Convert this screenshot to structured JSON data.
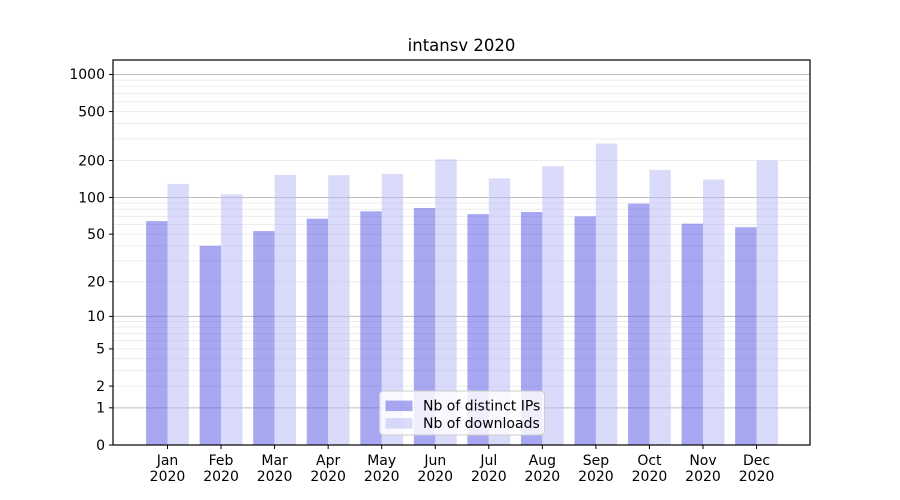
{
  "chart_data": {
    "type": "bar",
    "title": "intansv 2020",
    "categories": [
      "Jan 2020",
      "Feb 2020",
      "Mar 2020",
      "Apr 2020",
      "May 2020",
      "Jun 2020",
      "Jul 2020",
      "Aug 2020",
      "Sep 2020",
      "Oct 2020",
      "Nov 2020",
      "Dec 2020"
    ],
    "x_tick_months": [
      "Jan",
      "Feb",
      "Mar",
      "Apr",
      "May",
      "Jun",
      "Jul",
      "Aug",
      "Sep",
      "Oct",
      "Nov",
      "Dec"
    ],
    "x_tick_year": "2020",
    "series": [
      {
        "name": "Nb of distinct IPs",
        "color": "#6161e7",
        "alpha": 0.55,
        "values": [
          64,
          40,
          53,
          67,
          77,
          82,
          73,
          76,
          70,
          89,
          61,
          57
        ]
      },
      {
        "name": "Nb of downloads",
        "color": "#bbbbf5",
        "alpha": 0.55,
        "values": [
          129,
          106,
          153,
          152,
          156,
          205,
          143,
          180,
          275,
          168,
          140,
          200
        ]
      }
    ],
    "yscale": "log1p",
    "yticks": [
      0,
      1,
      2,
      5,
      10,
      20,
      50,
      100,
      200,
      500,
      1000
    ],
    "ylim": [
      0,
      1300
    ],
    "grid": {
      "major_color": "#bdbdbd",
      "minor_color": "#ececec"
    },
    "legend": {
      "position": "lower center",
      "border_color": "#cccccc",
      "background": "#ffffff"
    }
  }
}
